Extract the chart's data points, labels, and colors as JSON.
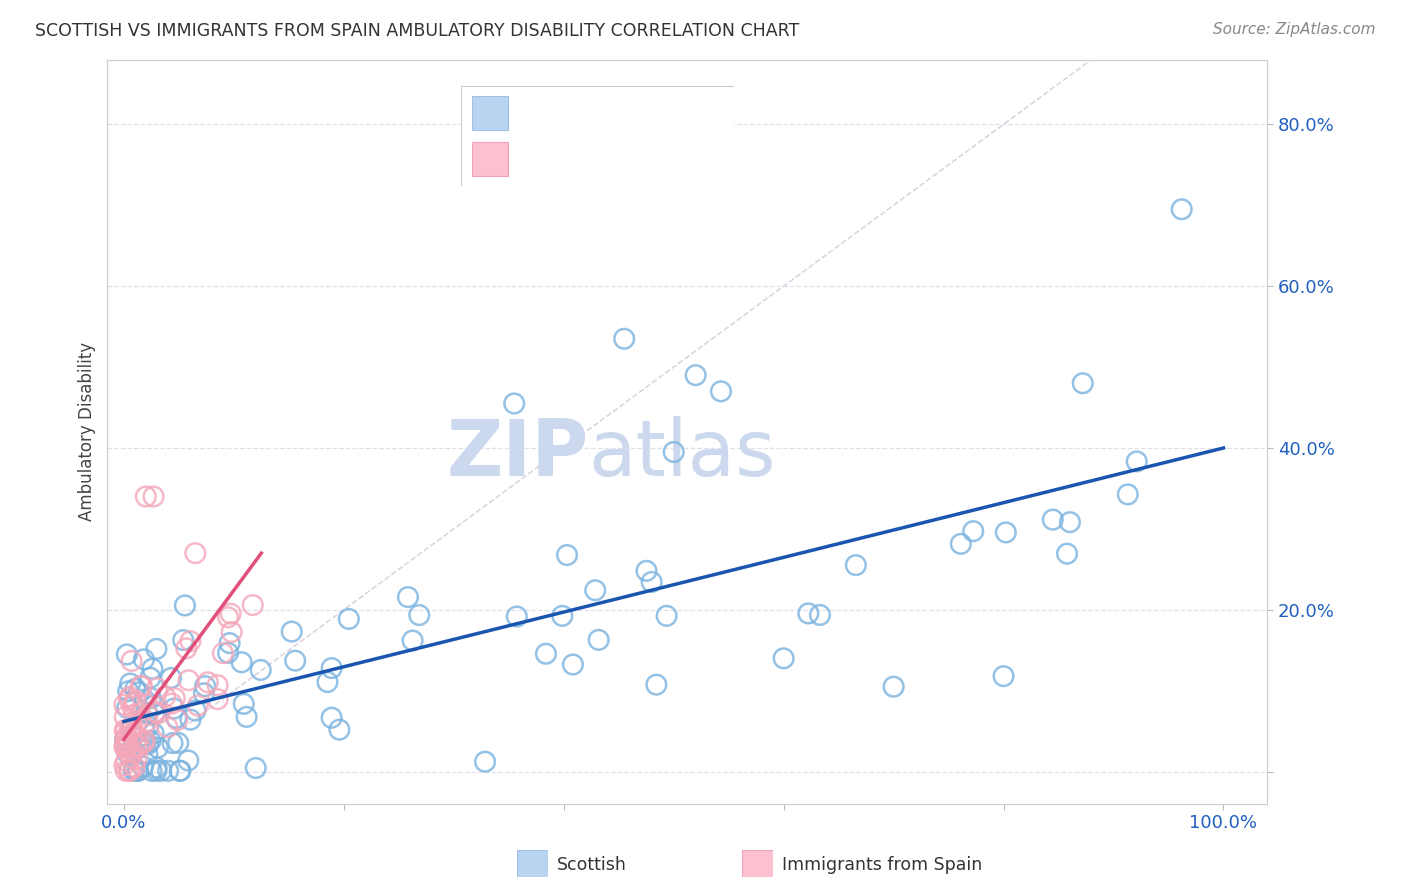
{
  "title": "SCOTTISH VS IMMIGRANTS FROM SPAIN AMBULATORY DISABILITY CORRELATION CHART",
  "source": "Source: ZipAtlas.com",
  "ylabel": "Ambulatory Disability",
  "xlim": [
    -0.015,
    1.04
  ],
  "ylim": [
    -0.04,
    0.88
  ],
  "x_ticks": [
    0.0,
    0.2,
    0.4,
    0.6,
    0.8,
    1.0
  ],
  "x_tick_labels": [
    "0.0%",
    "",
    "",
    "",
    "",
    "100.0%"
  ],
  "y_ticks": [
    0.0,
    0.2,
    0.4,
    0.6,
    0.8
  ],
  "y_tick_labels": [
    "",
    "20.0%",
    "40.0%",
    "60.0%",
    "80.0%"
  ],
  "scottish_color": "#7ab3e0",
  "spain_color": "#f4a7b9",
  "scottish_line_color": "#1a56b0",
  "spain_line_color": "#e0507a",
  "diagonal_color": "#d8c8d8",
  "background_color": "#ffffff",
  "grid_color": "#e0e0ea",
  "watermark_zip": "ZIP",
  "watermark_atlas": "atlas",
  "watermark_color": "#ccd8ee",
  "legend_blue_color": "#2060c0",
  "legend_text_color": "#222222",
  "tick_color": "#2060c0",
  "title_color": "#333333",
  "source_color": "#888888",
  "ylabel_color": "#444444"
}
